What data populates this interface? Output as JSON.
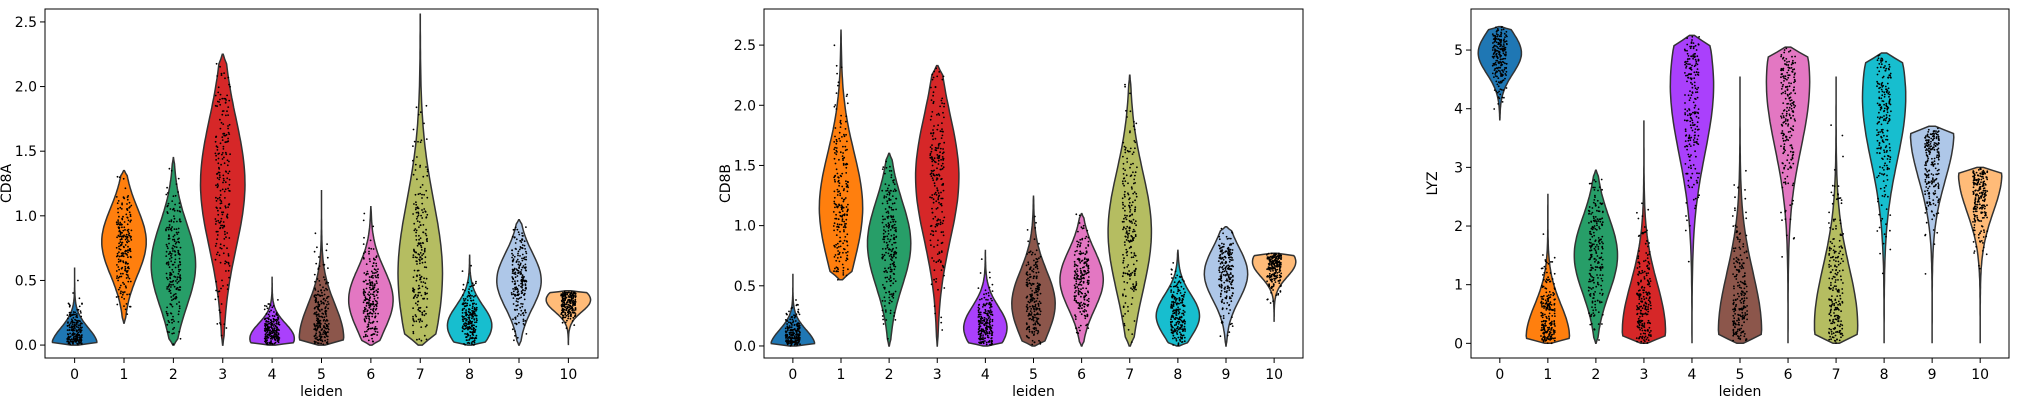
{
  "chart_data": [
    {
      "type": "violin",
      "xlabel": "leiden",
      "ylabel": "CD8A",
      "categories": [
        "0",
        "1",
        "2",
        "3",
        "4",
        "5",
        "6",
        "7",
        "8",
        "9",
        "10"
      ],
      "ylim": [
        -0.1,
        2.6
      ],
      "yticks": [
        0.0,
        0.5,
        1.0,
        1.5,
        2.0,
        2.5
      ],
      "ytick_labels": [
        "0.0",
        "0.5",
        "1.0",
        "1.5",
        "2.0",
        "2.5"
      ],
      "grid": false,
      "series": [
        {
          "category": "0",
          "min": 0.0,
          "max": 0.6,
          "mode": 0.0
        },
        {
          "category": "1",
          "min": 0.17,
          "max": 1.35,
          "mode": 0.8
        },
        {
          "category": "2",
          "min": 0.0,
          "max": 1.45,
          "mode": 0.62
        },
        {
          "category": "3",
          "min": 0.0,
          "max": 2.25,
          "mode": 1.25
        },
        {
          "category": "4",
          "min": 0.0,
          "max": 0.53,
          "mode": 0.05
        },
        {
          "category": "5",
          "min": 0.0,
          "max": 1.2,
          "mode": 0.05
        },
        {
          "category": "6",
          "min": 0.0,
          "max": 1.07,
          "mode": 0.35
        },
        {
          "category": "7",
          "min": 0.0,
          "max": 2.56,
          "mode": 0.55
        },
        {
          "category": "8",
          "min": 0.0,
          "max": 0.7,
          "mode": 0.15
        },
        {
          "category": "9",
          "min": 0.0,
          "max": 0.97,
          "mode": 0.5
        },
        {
          "category": "10",
          "min": 0.0,
          "max": 0.42,
          "mode": 0.35
        }
      ]
    },
    {
      "type": "violin",
      "xlabel": "leiden",
      "ylabel": "CD8B",
      "categories": [
        "0",
        "1",
        "2",
        "3",
        "4",
        "5",
        "6",
        "7",
        "8",
        "9",
        "10"
      ],
      "ylim": [
        -0.1,
        2.8
      ],
      "yticks": [
        0.0,
        0.5,
        1.0,
        1.5,
        2.0,
        2.5
      ],
      "ytick_labels": [
        "0.0",
        "0.5",
        "1.0",
        "1.5",
        "2.0",
        "2.5"
      ],
      "grid": false,
      "series": [
        {
          "category": "0",
          "min": 0.0,
          "max": 0.6,
          "mode": 0.0
        },
        {
          "category": "1",
          "min": 0.55,
          "max": 2.63,
          "mode": 1.15
        },
        {
          "category": "2",
          "min": 0.0,
          "max": 1.6,
          "mode": 0.85
        },
        {
          "category": "3",
          "min": 0.0,
          "max": 2.33,
          "mode": 1.4
        },
        {
          "category": "4",
          "min": 0.0,
          "max": 0.8,
          "mode": 0.15
        },
        {
          "category": "5",
          "min": 0.0,
          "max": 1.25,
          "mode": 0.35
        },
        {
          "category": "6",
          "min": 0.0,
          "max": 1.1,
          "mode": 0.55
        },
        {
          "category": "7",
          "min": 0.0,
          "max": 2.25,
          "mode": 0.95
        },
        {
          "category": "8",
          "min": 0.0,
          "max": 0.8,
          "mode": 0.25
        },
        {
          "category": "9",
          "min": 0.0,
          "max": 0.99,
          "mode": 0.6
        },
        {
          "category": "10",
          "min": 0.2,
          "max": 0.77,
          "mode": 0.7
        }
      ]
    },
    {
      "type": "violin",
      "xlabel": "leiden",
      "ylabel": "LYZ",
      "categories": [
        "0",
        "1",
        "2",
        "3",
        "4",
        "5",
        "6",
        "7",
        "8",
        "9",
        "10"
      ],
      "ylim": [
        -0.25,
        5.7
      ],
      "yticks": [
        0,
        1,
        2,
        3,
        4,
        5
      ],
      "ytick_labels": [
        "0",
        "1",
        "2",
        "3",
        "4",
        "5"
      ],
      "grid": false,
      "series": [
        {
          "category": "0",
          "min": 3.8,
          "max": 5.4,
          "mode": 4.95
        },
        {
          "category": "1",
          "min": 0.0,
          "max": 2.55,
          "mode": 0.1
        },
        {
          "category": "2",
          "min": 0.0,
          "max": 2.95,
          "mode": 1.5
        },
        {
          "category": "3",
          "min": 0.0,
          "max": 3.8,
          "mode": 0.2
        },
        {
          "category": "4",
          "min": 0.0,
          "max": 5.25,
          "mode": 4.4
        },
        {
          "category": "5",
          "min": 0.0,
          "max": 4.55,
          "mode": 0.2
        },
        {
          "category": "6",
          "min": 0.0,
          "max": 5.05,
          "mode": 4.45
        },
        {
          "category": "7",
          "min": 0.0,
          "max": 4.55,
          "mode": 0.3
        },
        {
          "category": "8",
          "min": 0.0,
          "max": 4.95,
          "mode": 4.2
        },
        {
          "category": "9",
          "min": 0.0,
          "max": 3.7,
          "mode": 3.6
        },
        {
          "category": "10",
          "min": 0.0,
          "max": 3.0,
          "mode": 2.9
        }
      ]
    }
  ],
  "palette": [
    "#1f77b4",
    "#ff7f0e",
    "#279e68",
    "#d62728",
    "#aa40fc",
    "#8c564b",
    "#e377c2",
    "#b5bd61",
    "#17becf",
    "#aec7e8",
    "#ffbb78"
  ]
}
